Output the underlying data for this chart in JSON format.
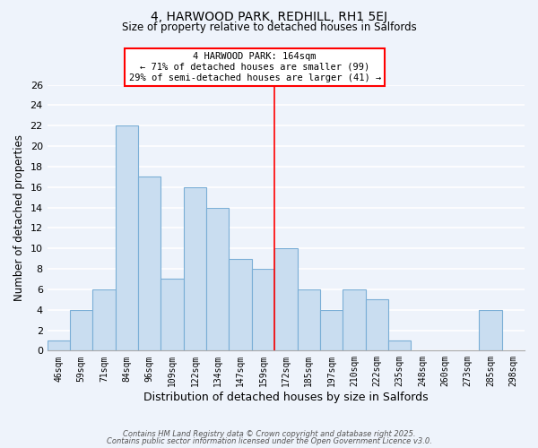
{
  "title": "4, HARWOOD PARK, REDHILL, RH1 5EJ",
  "subtitle": "Size of property relative to detached houses in Salfords",
  "xlabel": "Distribution of detached houses by size in Salfords",
  "ylabel": "Number of detached properties",
  "bin_labels": [
    "46sqm",
    "59sqm",
    "71sqm",
    "84sqm",
    "96sqm",
    "109sqm",
    "122sqm",
    "134sqm",
    "147sqm",
    "159sqm",
    "172sqm",
    "185sqm",
    "197sqm",
    "210sqm",
    "222sqm",
    "235sqm",
    "248sqm",
    "260sqm",
    "273sqm",
    "285sqm",
    "298sqm"
  ],
  "bar_heights": [
    1,
    4,
    6,
    22,
    17,
    7,
    16,
    14,
    9,
    8,
    10,
    6,
    4,
    6,
    5,
    1,
    0,
    0,
    0,
    4,
    0
  ],
  "bar_color": "#c9ddf0",
  "bar_edge_color": "#7aaed6",
  "ylim": [
    0,
    26
  ],
  "yticks": [
    0,
    2,
    4,
    6,
    8,
    10,
    12,
    14,
    16,
    18,
    20,
    22,
    24,
    26
  ],
  "property_label": "4 HARWOOD PARK: 164sqm",
  "annotation_line1": "← 71% of detached houses are smaller (99)",
  "annotation_line2": "29% of semi-detached houses are larger (41) →",
  "vline_x_bin_index": 9.5,
  "footnote1": "Contains HM Land Registry data © Crown copyright and database right 2025.",
  "footnote2": "Contains public sector information licensed under the Open Government Licence v3.0.",
  "background_color": "#eef3fb",
  "plot_background_color": "#eef3fb",
  "grid_color": "#ffffff"
}
